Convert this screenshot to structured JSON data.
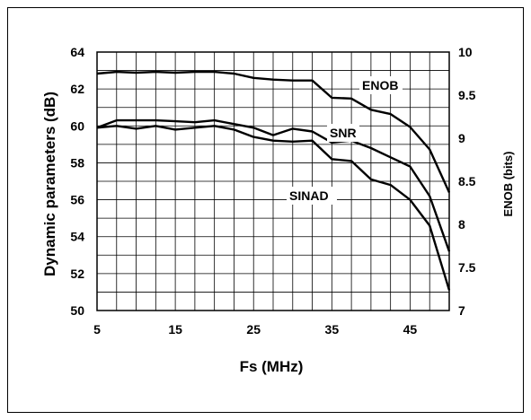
{
  "chart_data": {
    "type": "line",
    "title": "",
    "xlabel": "Fs (MHz)",
    "ylabel": "Dynamic parameters (dB)",
    "y2label": "ENOB (bits)",
    "xlim": [
      5,
      50
    ],
    "ylim": [
      50,
      64
    ],
    "y2lim": [
      7,
      10
    ],
    "x_ticks": [
      "5",
      "15",
      "25",
      "35",
      "45"
    ],
    "y_ticks": [
      "50",
      "52",
      "54",
      "56",
      "58",
      "60",
      "62",
      "64"
    ],
    "y2_ticks": [
      "7",
      "7.5",
      "8",
      "8.5",
      "9",
      "9.5",
      "10"
    ],
    "grid": true,
    "legend": "inline labels",
    "series": [
      {
        "name": "ENOB",
        "axis": "right",
        "x": [
          5,
          7.5,
          10,
          12.5,
          15,
          17.5,
          20,
          22.5,
          25,
          27.5,
          30,
          32.5,
          35,
          37.5,
          40,
          42.5,
          45,
          47.5,
          50
        ],
        "values": [
          9.75,
          9.77,
          9.76,
          9.77,
          9.76,
          9.77,
          9.77,
          9.75,
          9.7,
          9.68,
          9.67,
          9.67,
          9.47,
          9.46,
          9.33,
          9.28,
          9.13,
          8.87,
          8.37
        ]
      },
      {
        "name": "SNR",
        "axis": "left",
        "x": [
          5,
          7.5,
          10,
          12.5,
          15,
          17.5,
          20,
          22.5,
          25,
          27.5,
          30,
          32.5,
          35,
          37.5,
          40,
          42.5,
          45,
          47.5,
          50
        ],
        "values": [
          59.9,
          60.3,
          60.3,
          60.3,
          60.25,
          60.2,
          60.3,
          60.1,
          59.9,
          59.5,
          59.85,
          59.7,
          59.1,
          59.2,
          58.8,
          58.3,
          57.8,
          56.2,
          53.2
        ]
      },
      {
        "name": "SINAD",
        "axis": "left",
        "x": [
          5,
          7.5,
          10,
          12.5,
          15,
          17.5,
          20,
          22.5,
          25,
          27.5,
          30,
          32.5,
          35,
          37.5,
          40,
          42.5,
          45,
          47.5,
          50
        ],
        "values": [
          59.9,
          60.0,
          59.85,
          60.0,
          59.8,
          59.9,
          60.0,
          59.8,
          59.4,
          59.2,
          59.15,
          59.2,
          58.2,
          58.1,
          57.1,
          56.8,
          56.0,
          54.6,
          51.1
        ]
      }
    ],
    "annotations": [
      "ENOB",
      "SNR",
      "SINAD"
    ]
  },
  "colors": {
    "line": "#000000",
    "grid": "#000000",
    "frame": "#000000",
    "background": "#ffffff"
  }
}
